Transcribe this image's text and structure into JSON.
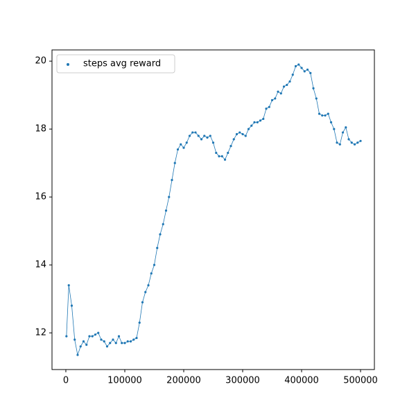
{
  "chart_data": {
    "type": "scatter",
    "x": [
      1000,
      5000,
      10000,
      15000,
      20000,
      25000,
      30000,
      35000,
      40000,
      45000,
      50000,
      55000,
      60000,
      65000,
      70000,
      75000,
      80000,
      85000,
      90000,
      95000,
      100000,
      105000,
      110000,
      115000,
      120000,
      125000,
      130000,
      135000,
      140000,
      145000,
      150000,
      155000,
      160000,
      165000,
      170000,
      175000,
      180000,
      185000,
      190000,
      195000,
      200000,
      205000,
      210000,
      215000,
      220000,
      225000,
      230000,
      235000,
      240000,
      245000,
      250000,
      255000,
      260000,
      265000,
      270000,
      275000,
      280000,
      285000,
      290000,
      295000,
      300000,
      305000,
      310000,
      315000,
      320000,
      325000,
      330000,
      335000,
      340000,
      345000,
      350000,
      355000,
      360000,
      365000,
      370000,
      375000,
      380000,
      385000,
      390000,
      395000,
      400000,
      405000,
      410000,
      415000,
      420000,
      425000,
      430000,
      435000,
      440000,
      445000,
      450000,
      455000,
      460000,
      465000,
      470000,
      475000,
      480000,
      485000,
      490000,
      495000,
      500000
    ],
    "series": [
      {
        "name": "steps avg reward",
        "color": "#1f77b4",
        "values": [
          11.9,
          13.4,
          12.8,
          11.8,
          11.35,
          11.6,
          11.75,
          11.65,
          11.9,
          11.9,
          11.95,
          12.0,
          11.8,
          11.75,
          11.6,
          11.7,
          11.8,
          11.7,
          11.9,
          11.7,
          11.7,
          11.75,
          11.75,
          11.8,
          11.85,
          12.3,
          12.9,
          13.2,
          13.4,
          13.75,
          14.0,
          14.5,
          14.9,
          15.2,
          15.6,
          16.0,
          16.5,
          17.0,
          17.4,
          17.55,
          17.45,
          17.6,
          17.8,
          17.9,
          17.9,
          17.8,
          17.7,
          17.8,
          17.75,
          17.8,
          17.6,
          17.3,
          17.2,
          17.2,
          17.1,
          17.3,
          17.5,
          17.7,
          17.85,
          17.9,
          17.85,
          17.8,
          18.0,
          18.1,
          18.2,
          18.2,
          18.25,
          18.3,
          18.6,
          18.65,
          18.85,
          18.9,
          19.1,
          19.05,
          19.25,
          19.3,
          19.4,
          19.6,
          19.85,
          19.9,
          19.8,
          19.7,
          19.75,
          19.65,
          19.2,
          18.9,
          18.45,
          18.4,
          18.4,
          18.45,
          18.2,
          18.0,
          17.6,
          17.55,
          17.9,
          18.05,
          17.7,
          17.6,
          17.55,
          17.6,
          17.65
        ]
      }
    ],
    "xlim": [
      -23500,
      523500
    ],
    "ylim": [
      10.92,
      20.33
    ],
    "xticks": [
      0,
      100000,
      200000,
      300000,
      400000,
      500000
    ],
    "yticks": [
      12,
      14,
      16,
      18,
      20
    ],
    "legend": "upper left"
  }
}
